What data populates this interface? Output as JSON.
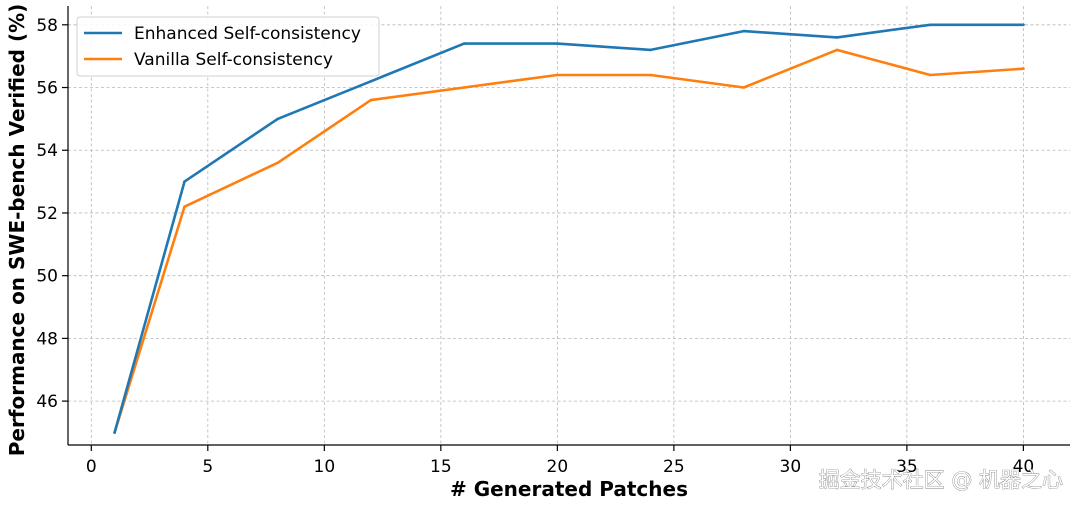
{
  "chart_data": {
    "type": "line",
    "xlabel": "# Generated Patches",
    "ylabel": "Performance on SWE-bench Verified (%)",
    "xlim": [
      -1,
      42
    ],
    "ylim": [
      44.6,
      58.6
    ],
    "xticks": [
      0,
      5,
      10,
      15,
      20,
      25,
      30,
      35,
      40
    ],
    "yticks": [
      46,
      48,
      50,
      52,
      54,
      56,
      58
    ],
    "grid": true,
    "legend_position": "top-left",
    "series": [
      {
        "name": "Enhanced Self-consistency",
        "color": "#1f77b4",
        "x": [
          1,
          4,
          8,
          12,
          16,
          20,
          24,
          28,
          32,
          36,
          40
        ],
        "y": [
          45.0,
          53.0,
          55.0,
          56.2,
          57.4,
          57.4,
          57.2,
          57.8,
          57.6,
          58.0,
          58.0
        ]
      },
      {
        "name": "Vanilla Self-consistency",
        "color": "#ff7f0e",
        "x": [
          1,
          4,
          8,
          12,
          16,
          20,
          24,
          28,
          32,
          36,
          40
        ],
        "y": [
          45.0,
          52.2,
          53.6,
          55.6,
          56.0,
          56.4,
          56.4,
          56.0,
          57.2,
          56.4,
          56.6
        ]
      }
    ]
  },
  "watermark": "掘金技术社区 @ 机器之心"
}
